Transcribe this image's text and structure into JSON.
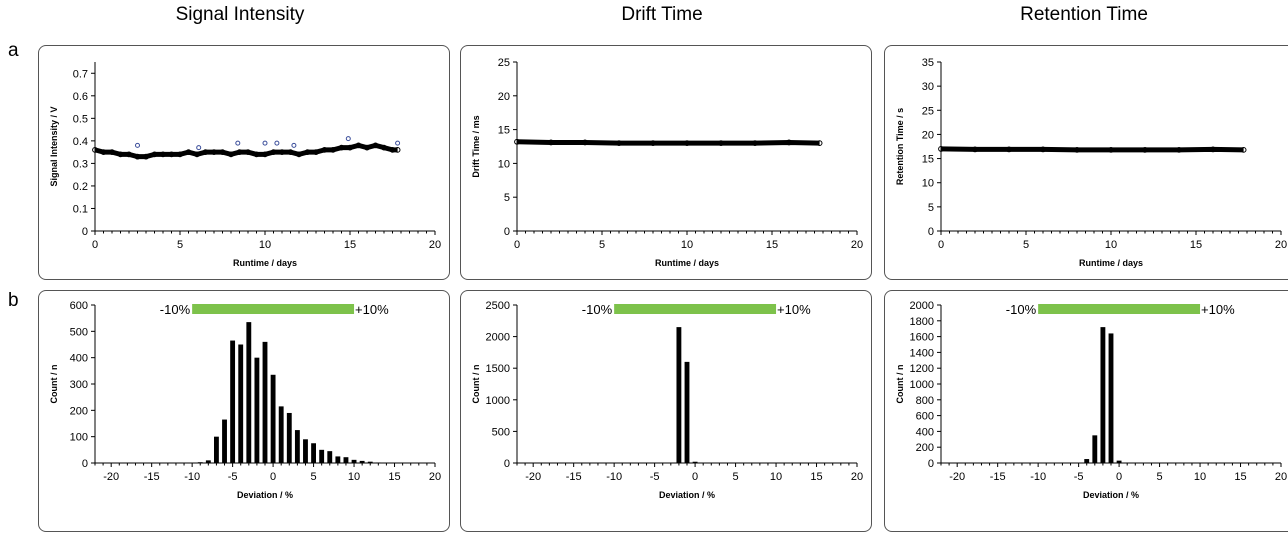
{
  "column_titles": [
    "Signal Intensity",
    "Drift Time",
    "Retention Time"
  ],
  "row_labels": [
    "a",
    "b"
  ],
  "colors": {
    "bar_fill": "#000000",
    "tolerance_bar": "#7dc24b",
    "panel_border": "#555555"
  },
  "chart_data": [
    {
      "type": "scatter",
      "row": "a",
      "column": "Signal Intensity",
      "xlabel": "Runtime / days",
      "ylabel": "Signal Intensity / V",
      "xlim": [
        0,
        20
      ],
      "ylim": [
        0,
        0.75
      ],
      "xticks": [
        0,
        5,
        10,
        15,
        20
      ],
      "yticks": [
        0,
        0.1,
        0.2,
        0.3,
        0.4,
        0.5,
        0.6,
        0.7
      ],
      "ytick_labels": [
        "0",
        "0.1",
        "0.2",
        "0.3",
        "0.4",
        "0.5",
        "0.6",
        "0.7"
      ],
      "x": [
        0,
        0.5,
        1,
        1.5,
        2,
        2.5,
        3,
        3.5,
        4,
        4.5,
        5,
        5.5,
        6,
        6.5,
        7,
        7.5,
        8,
        8.5,
        9,
        9.5,
        10,
        10.5,
        11,
        11.5,
        12,
        12.5,
        13,
        13.5,
        14,
        14.5,
        15,
        15.5,
        16,
        16.5,
        17,
        17.5,
        17.8
      ],
      "y": [
        0.36,
        0.35,
        0.35,
        0.34,
        0.34,
        0.33,
        0.33,
        0.34,
        0.34,
        0.34,
        0.34,
        0.35,
        0.34,
        0.35,
        0.35,
        0.35,
        0.34,
        0.35,
        0.35,
        0.34,
        0.34,
        0.35,
        0.35,
        0.35,
        0.34,
        0.35,
        0.35,
        0.36,
        0.36,
        0.37,
        0.37,
        0.38,
        0.37,
        0.38,
        0.37,
        0.36,
        0.36
      ],
      "outliers_x": [
        2.5,
        6.1,
        8.4,
        10,
        10.7,
        11.7,
        14.9,
        17.8
      ],
      "outliers_y": [
        0.38,
        0.37,
        0.39,
        0.39,
        0.39,
        0.38,
        0.41,
        0.39
      ]
    },
    {
      "type": "scatter",
      "row": "a",
      "column": "Drift Time",
      "xlabel": "Runtime / days",
      "ylabel": "Drift Time / ms",
      "xlim": [
        0,
        20
      ],
      "ylim": [
        0,
        25
      ],
      "xticks": [
        0,
        5,
        10,
        15,
        20
      ],
      "yticks": [
        0,
        5,
        10,
        15,
        20,
        25
      ],
      "ytick_labels": [
        "0",
        "5",
        "10",
        "15",
        "20",
        "25"
      ],
      "x": [
        0,
        2,
        4,
        6,
        8,
        10,
        12,
        14,
        16,
        17.8
      ],
      "y": [
        13.2,
        13.1,
        13.1,
        13.0,
        13.0,
        13.0,
        13.0,
        13.0,
        13.1,
        13.0
      ]
    },
    {
      "type": "scatter",
      "row": "a",
      "column": "Retention Time",
      "xlabel": "Runtime / days",
      "ylabel": "Retention Time / s",
      "xlim": [
        0,
        20
      ],
      "ylim": [
        0,
        35
      ],
      "xticks": [
        0,
        5,
        10,
        15,
        20
      ],
      "yticks": [
        0,
        5,
        10,
        15,
        20,
        25,
        30,
        35
      ],
      "ytick_labels": [
        "0",
        "5",
        "10",
        "15",
        "20",
        "25",
        "30",
        "35"
      ],
      "x": [
        0,
        2,
        4,
        6,
        8,
        10,
        12,
        14,
        16,
        17.8
      ],
      "y": [
        17.0,
        16.9,
        16.9,
        16.9,
        16.8,
        16.8,
        16.8,
        16.8,
        16.9,
        16.8
      ]
    },
    {
      "type": "bar",
      "row": "b",
      "column": "Signal Intensity",
      "xlabel": "Deviation / %",
      "ylabel": "Count / n",
      "xlim": [
        -22,
        20
      ],
      "ylim": [
        0,
        600
      ],
      "xticks": [
        -20,
        -15,
        -10,
        -5,
        0,
        5,
        10,
        15,
        20
      ],
      "yticks": [
        0,
        100,
        200,
        300,
        400,
        500,
        600
      ],
      "ytick_labels": [
        "0",
        "100",
        "200",
        "300",
        "400",
        "500",
        "600"
      ],
      "tolerance": {
        "low": -10,
        "high": 10,
        "low_label": "-10%",
        "high_label": "+10%"
      },
      "x": [
        -9,
        -8,
        -7,
        -6,
        -5,
        -4,
        -3,
        -2,
        -1,
        0,
        1,
        2,
        3,
        4,
        5,
        6,
        7,
        8,
        9,
        10,
        11,
        12,
        13
      ],
      "values": [
        3,
        10,
        100,
        165,
        465,
        450,
        535,
        400,
        460,
        335,
        215,
        190,
        125,
        90,
        75,
        50,
        45,
        25,
        22,
        12,
        8,
        5,
        2
      ]
    },
    {
      "type": "bar",
      "row": "b",
      "column": "Drift Time",
      "xlabel": "Deviation / %",
      "ylabel": "Count / n",
      "xlim": [
        -22,
        20
      ],
      "ylim": [
        0,
        2500
      ],
      "xticks": [
        -20,
        -15,
        -10,
        -5,
        0,
        5,
        10,
        15,
        20
      ],
      "yticks": [
        0,
        500,
        1000,
        1500,
        2000,
        2500
      ],
      "ytick_labels": [
        "0",
        "500",
        "1000",
        "1500",
        "2000",
        "2500"
      ],
      "tolerance": {
        "low": -10,
        "high": 10,
        "low_label": "-10%",
        "high_label": "+10%"
      },
      "x": [
        -2,
        -1,
        0
      ],
      "values": [
        2150,
        1600,
        20
      ]
    },
    {
      "type": "bar",
      "row": "b",
      "column": "Retention Time",
      "xlabel": "Deviation / %",
      "ylabel": "Count / n",
      "xlim": [
        -22,
        20
      ],
      "ylim": [
        0,
        2000
      ],
      "xticks": [
        -20,
        -15,
        -10,
        -5,
        0,
        5,
        10,
        15,
        20
      ],
      "yticks": [
        0,
        200,
        400,
        600,
        800,
        1000,
        1200,
        1400,
        1600,
        1800,
        2000
      ],
      "ytick_labels": [
        "0",
        "200",
        "400",
        "600",
        "800",
        "1000",
        "1200",
        "1400",
        "1600",
        "1800",
        "2000"
      ],
      "tolerance": {
        "low": -10,
        "high": 10,
        "low_label": "-10%",
        "high_label": "+10%"
      },
      "x": [
        -4,
        -3,
        -2,
        -1,
        0
      ],
      "values": [
        50,
        350,
        1720,
        1640,
        30
      ]
    }
  ]
}
